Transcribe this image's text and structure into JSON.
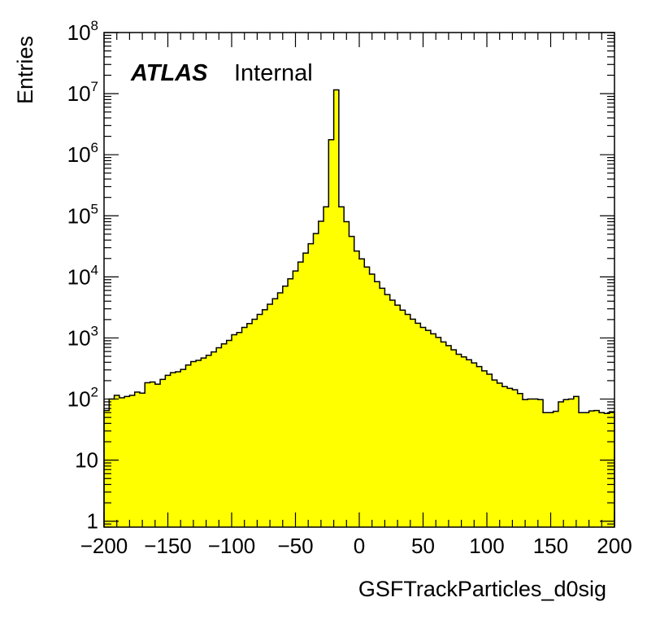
{
  "chart_data": {
    "type": "bar",
    "histogram": true,
    "title": "",
    "xlabel": "GSFTrackParticles_d0sig",
    "ylabel": "Entries",
    "experiment_label": "ATLAS",
    "status_label": "Internal",
    "xlim": [
      -200,
      200
    ],
    "ylim": [
      0.8,
      100000000
    ],
    "yscale": "log",
    "bin_width": 4,
    "fill_color": "#ffff00",
    "line_color": "#000000",
    "grid": false,
    "x_ticks": [
      {
        "value": -200,
        "label": "−200"
      },
      {
        "value": -150,
        "label": "−150"
      },
      {
        "value": -100,
        "label": "−100"
      },
      {
        "value": -50,
        "label": "−50"
      },
      {
        "value": 0,
        "label": "0"
      },
      {
        "value": 50,
        "label": "50"
      },
      {
        "value": 100,
        "label": "100"
      },
      {
        "value": 150,
        "label": "150"
      },
      {
        "value": 200,
        "label": "200"
      }
    ],
    "y_ticks": [
      {
        "value": 1,
        "base": "1",
        "exp": ""
      },
      {
        "value": 10,
        "base": "10",
        "exp": ""
      },
      {
        "value": 100,
        "base": "10",
        "exp": "2"
      },
      {
        "value": 1000,
        "base": "10",
        "exp": "3"
      },
      {
        "value": 10000,
        "base": "10",
        "exp": "4"
      },
      {
        "value": 100000,
        "base": "10",
        "exp": "5"
      },
      {
        "value": 1000000,
        "base": "10",
        "exp": "6"
      },
      {
        "value": 10000000,
        "base": "10",
        "exp": "7"
      },
      {
        "value": 100000000,
        "base": "10",
        "exp": "8"
      }
    ],
    "values": [
      65,
      100,
      115,
      105,
      110,
      115,
      130,
      125,
      185,
      190,
      175,
      210,
      245,
      270,
      280,
      305,
      360,
      410,
      430,
      470,
      520,
      590,
      690,
      800,
      910,
      1130,
      1230,
      1490,
      1720,
      2020,
      2430,
      2900,
      3570,
      4390,
      5480,
      7060,
      9290,
      12500,
      17500,
      24500,
      34900,
      51100,
      81500,
      140000,
      1760000,
      11500000,
      140000,
      80000,
      45900,
      26500,
      19700,
      14500,
      11100,
      8350,
      6500,
      5140,
      4150,
      3450,
      2850,
      2430,
      2030,
      1740,
      1490,
      1330,
      1170,
      1020,
      860,
      750,
      640,
      540,
      490,
      440,
      390,
      340,
      290,
      255,
      205,
      182,
      160,
      150,
      142,
      123,
      98,
      100,
      100,
      98,
      60,
      60,
      63,
      90,
      98,
      100,
      110,
      60,
      60,
      64,
      65,
      60,
      58,
      62
    ]
  }
}
